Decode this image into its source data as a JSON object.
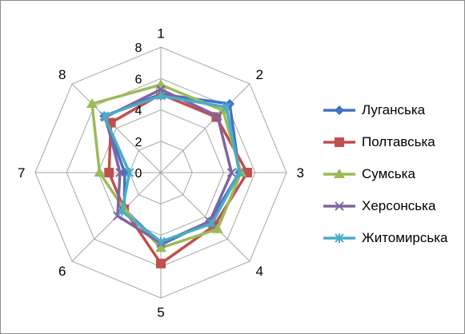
{
  "chart_data": {
    "type": "radar",
    "title": "",
    "categories": [
      "1",
      "2",
      "3",
      "4",
      "5",
      "6",
      "7",
      "8"
    ],
    "rlim": [
      0,
      8
    ],
    "r_ticks": [
      "0",
      "2",
      "4",
      "6",
      "8"
    ],
    "r_tick_values": [
      0,
      2,
      4,
      6,
      8
    ],
    "grid": true,
    "legend_position": "right",
    "series": [
      {
        "name": "Луганська",
        "values": [
          5.0,
          6.2,
          5.0,
          4.4,
          4.6,
          3.3,
          2.3,
          5.1
        ],
        "color": "#4472C4",
        "marker": "diamond"
      },
      {
        "name": "Полтавська",
        "values": [
          5.0,
          5.0,
          5.5,
          4.8,
          5.8,
          3.3,
          3.3,
          4.5
        ],
        "color": "#C0504D",
        "marker": "square"
      },
      {
        "name": "Сумська",
        "values": [
          5.6,
          5.6,
          5.1,
          5.1,
          4.8,
          3.3,
          3.9,
          6.2
        ],
        "color": "#9BBB59",
        "marker": "triangle"
      },
      {
        "name": "Херсонська",
        "values": [
          5.3,
          5.1,
          4.5,
          4.4,
          4.5,
          3.9,
          2.6,
          5.0
        ],
        "color": "#8064A2",
        "marker": "x"
      },
      {
        "name": "Житомирська",
        "values": [
          4.9,
          5.9,
          5.0,
          4.6,
          4.4,
          3.5,
          2.0,
          5.1
        ],
        "color": "#4BACC6",
        "marker": "asterisk"
      }
    ]
  }
}
